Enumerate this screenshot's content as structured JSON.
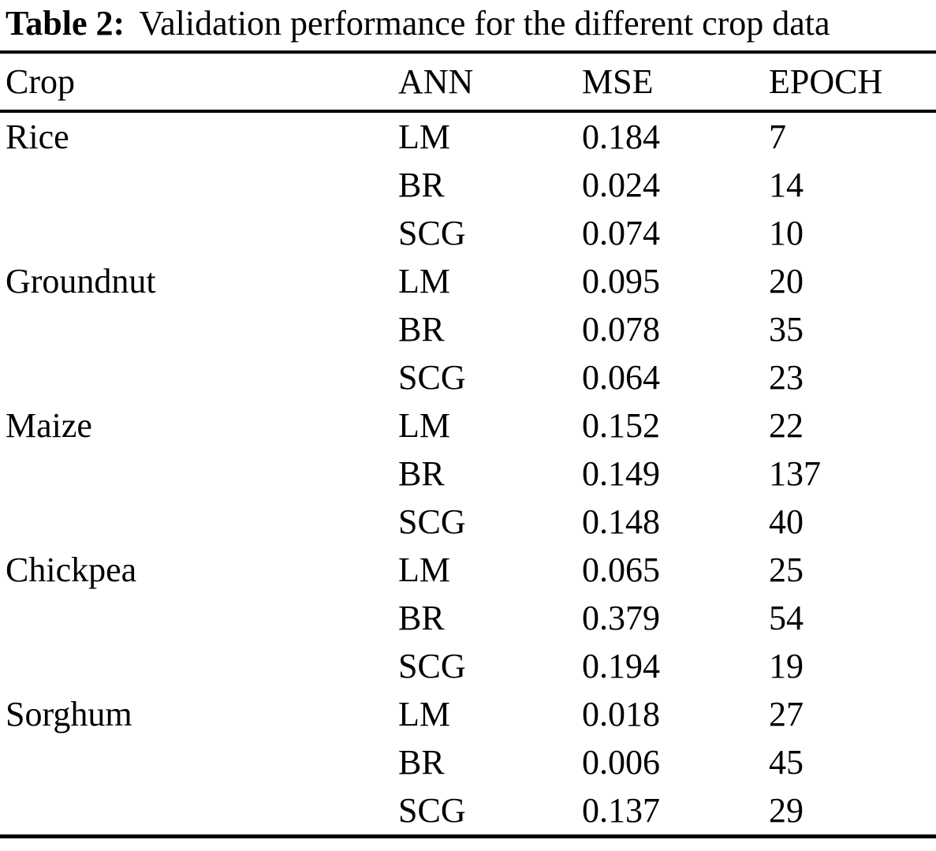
{
  "caption": {
    "label": "Table 2:",
    "text": "Validation performance for the different crop data"
  },
  "table": {
    "columns": [
      "Crop",
      "ANN",
      "MSE",
      "EPOCH"
    ],
    "rows": [
      {
        "crop": "Rice",
        "ann": "LM",
        "mse": "0.184",
        "epoch": "7"
      },
      {
        "crop": "",
        "ann": "BR",
        "mse": "0.024",
        "epoch": "14"
      },
      {
        "crop": "",
        "ann": "SCG",
        "mse": "0.074",
        "epoch": "10"
      },
      {
        "crop": "Groundnut",
        "ann": "LM",
        "mse": "0.095",
        "epoch": "20"
      },
      {
        "crop": "",
        "ann": "BR",
        "mse": "0.078",
        "epoch": "35"
      },
      {
        "crop": "",
        "ann": "SCG",
        "mse": "0.064",
        "epoch": "23"
      },
      {
        "crop": "Maize",
        "ann": "LM",
        "mse": "0.152",
        "epoch": "22"
      },
      {
        "crop": "",
        "ann": "BR",
        "mse": "0.149",
        "epoch": "137"
      },
      {
        "crop": "",
        "ann": "SCG",
        "mse": "0.148",
        "epoch": "40"
      },
      {
        "crop": "Chickpea",
        "ann": "LM",
        "mse": "0.065",
        "epoch": "25"
      },
      {
        "crop": "",
        "ann": "BR",
        "mse": "0.379",
        "epoch": "54"
      },
      {
        "crop": "",
        "ann": "SCG",
        "mse": "0.194",
        "epoch": "19"
      },
      {
        "crop": "Sorghum",
        "ann": "LM",
        "mse": "0.018",
        "epoch": "27"
      },
      {
        "crop": "",
        "ann": "BR",
        "mse": "0.006",
        "epoch": "45"
      },
      {
        "crop": "",
        "ann": "SCG",
        "mse": "0.137",
        "epoch": "29"
      }
    ]
  },
  "colors": {
    "text": "#000000",
    "background": "#ffffff",
    "rule": "#000000"
  }
}
